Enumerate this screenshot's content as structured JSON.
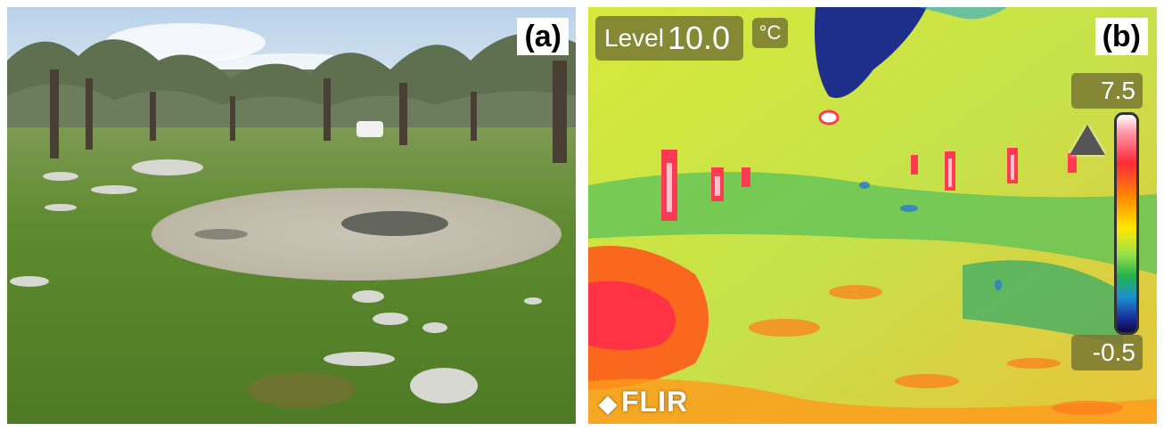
{
  "panel_a": {
    "label": "(a)"
  },
  "panel_b": {
    "label": "(b)",
    "level_word": "Level",
    "level_value": "10.0",
    "unit": "°C",
    "scale_max": "7.5",
    "scale_min": "-0.5",
    "brand": "FLIR",
    "brand_icon": "flir-diamond-icon"
  }
}
